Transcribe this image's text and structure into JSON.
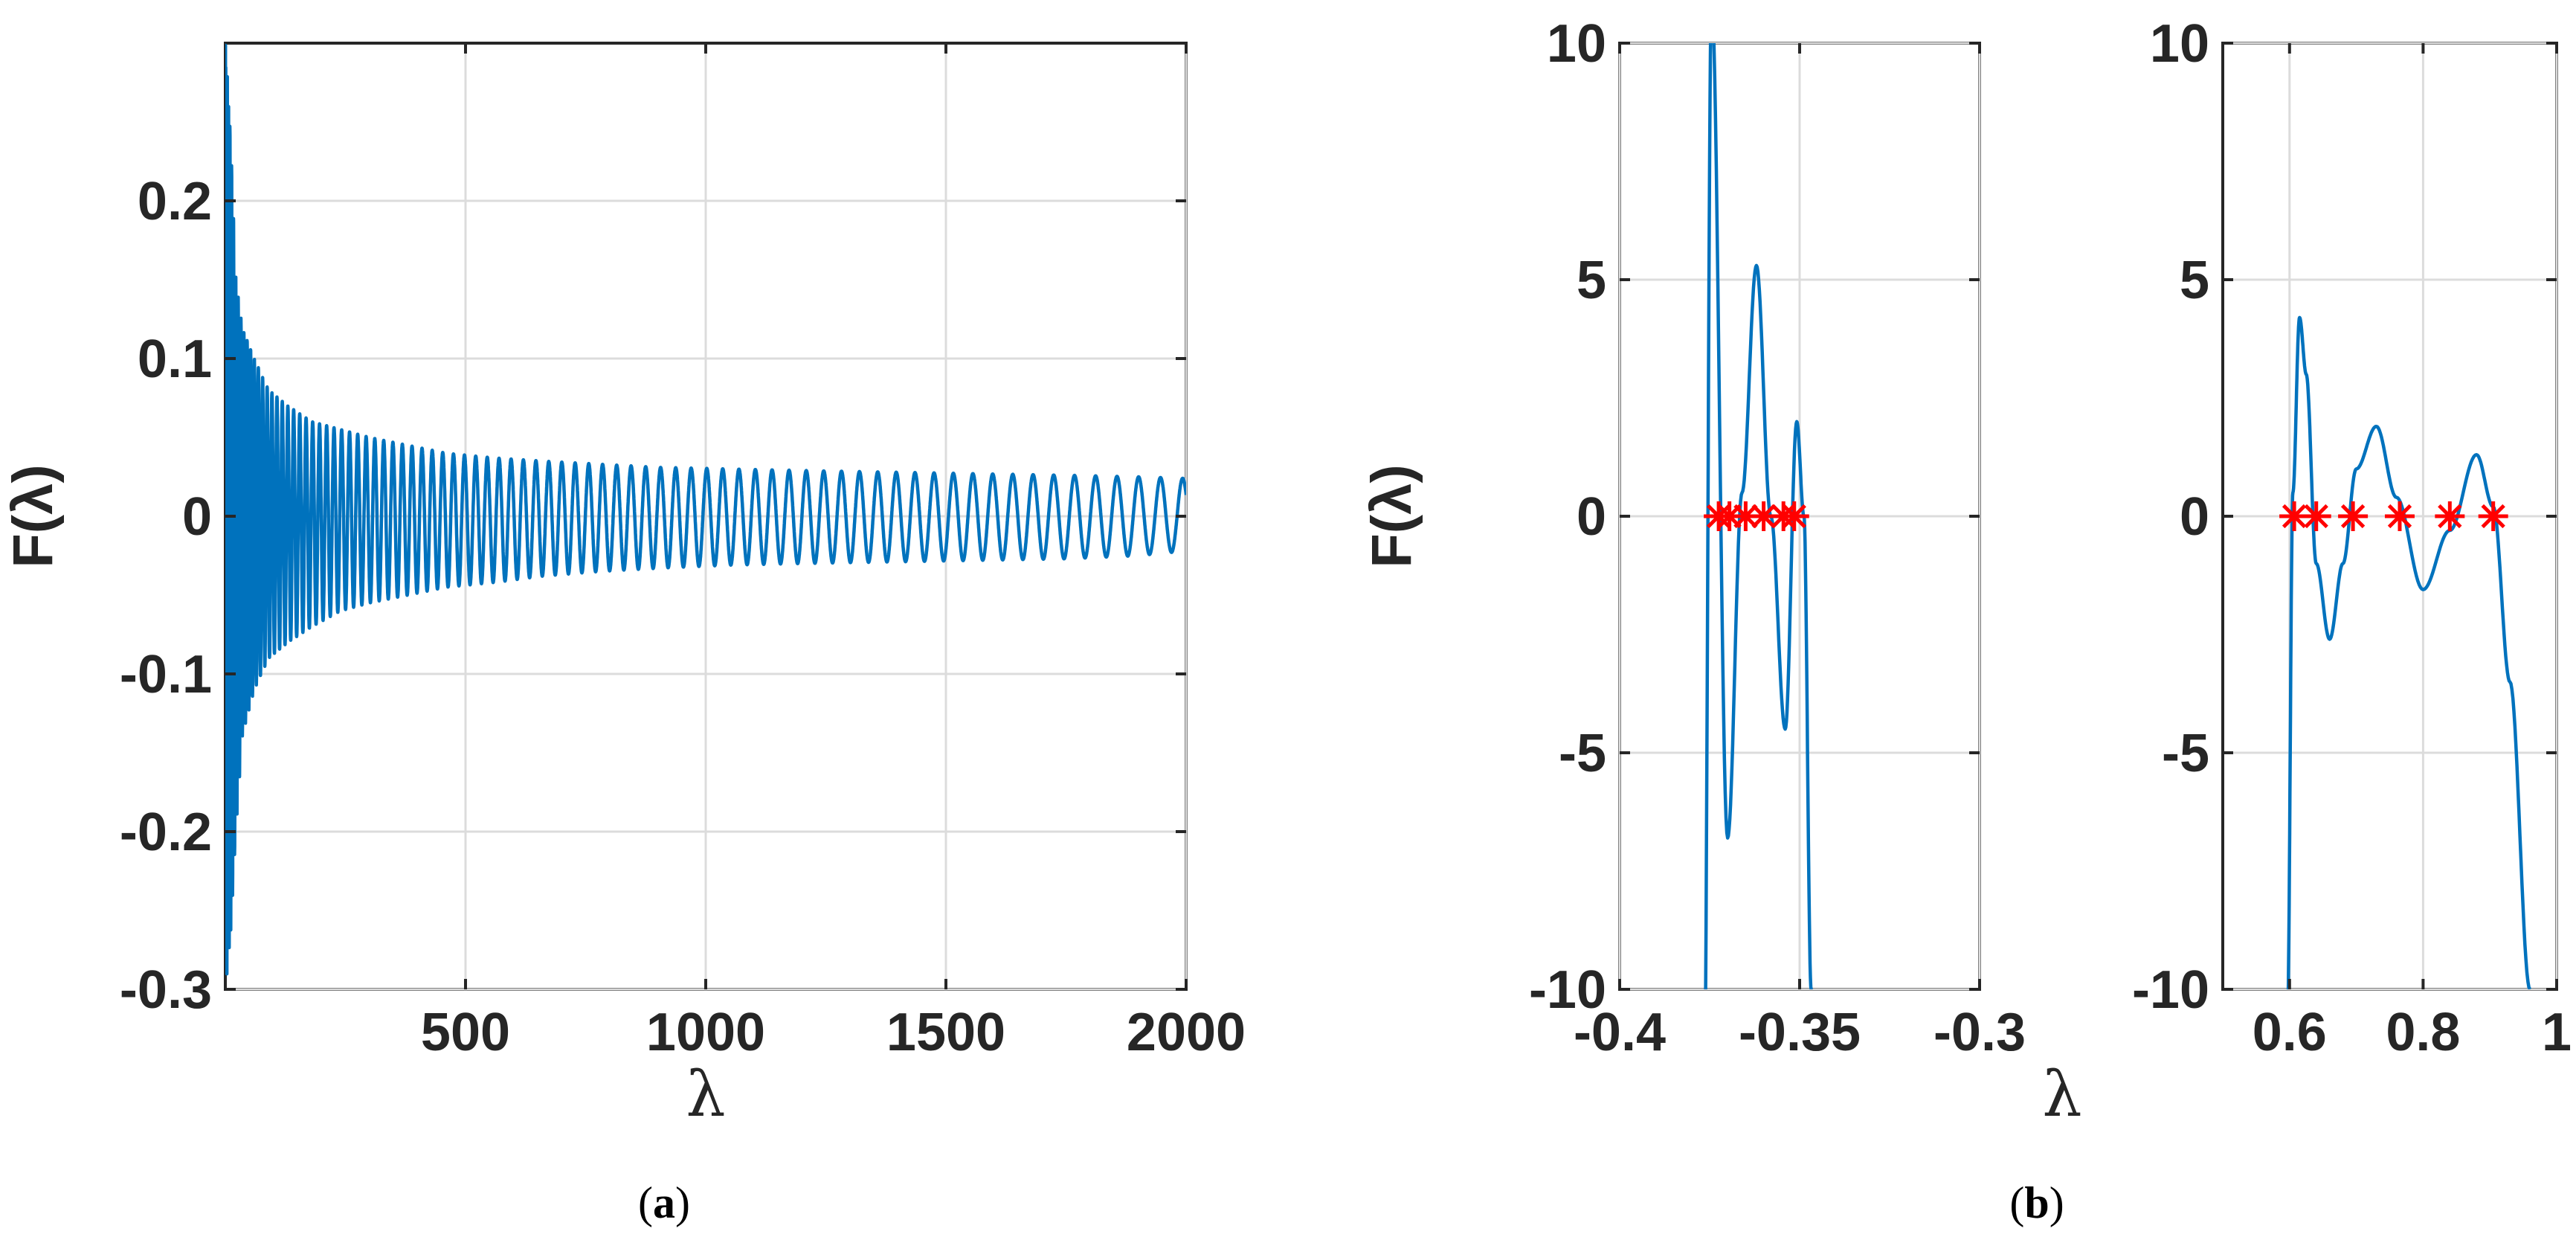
{
  "chart_data": [
    {
      "type": "line",
      "panel": "a",
      "caption": "(a)",
      "caption_letter": "a",
      "xlabel": "λ",
      "ylabel": "F(λ)",
      "xlim": [
        0,
        2000
      ],
      "ylim": [
        -0.3,
        0.3
      ],
      "xticks": [
        500,
        1000,
        1500,
        2000
      ],
      "xtick_labels": [
        "500",
        "1000",
        "1500",
        "2000"
      ],
      "yticks": [
        -0.3,
        -0.2,
        -0.1,
        0,
        0.1,
        0.2
      ],
      "ytick_labels": [
        "-0.3",
        "-0.2",
        "-0.1",
        "0",
        "0.1",
        "0.2"
      ],
      "grid": true,
      "series": [
        {
          "name": "F(λ)",
          "color": "#0072BD",
          "description": "Damped oscillation whose period grows with λ",
          "x": [
            0,
            10,
            22,
            35,
            60,
            90,
            130,
            180,
            240,
            300,
            380,
            460,
            560,
            660,
            780,
            900,
            1050,
            1200,
            1380,
            1560,
            1750,
            1900,
            2000
          ],
          "peaks_max": [
            0.3,
            0.25,
            0.15,
            0.12,
            0.1,
            0.08,
            0.07,
            0.06,
            0.055,
            0.05,
            0.045,
            0.04,
            0.037,
            0.035,
            0.033,
            0.031,
            0.03,
            0.029,
            0.028,
            0.027,
            0.026,
            0.025,
            0.024
          ],
          "peaks_min": [
            -0.3,
            -0.27,
            -0.2,
            -0.14,
            -0.11,
            -0.09,
            -0.08,
            -0.07,
            -0.06,
            -0.055,
            -0.05,
            -0.045,
            -0.042,
            -0.038,
            -0.035,
            -0.033,
            -0.031,
            -0.03,
            -0.029,
            -0.028,
            -0.027,
            -0.025,
            -0.022
          ]
        }
      ]
    },
    {
      "type": "line",
      "panel": "b-left",
      "xlabel": "",
      "ylabel": "F(λ)",
      "xlim": [
        -0.4,
        -0.3
      ],
      "ylim": [
        -10,
        10
      ],
      "xticks": [
        -0.4,
        -0.35,
        -0.3
      ],
      "xtick_labels": [
        "-0.4",
        "-0.35",
        "-0.3"
      ],
      "yticks": [
        -10,
        -5,
        0,
        5,
        10
      ],
      "ytick_labels": [
        "-10",
        "-5",
        "0",
        "5",
        "10"
      ],
      "grid": true,
      "series": [
        {
          "name": "F(λ)",
          "color": "#0072BD",
          "x": [
            -0.3765,
            -0.3745,
            -0.37,
            -0.366,
            -0.362,
            -0.358,
            -0.354,
            -0.3508,
            -0.3488,
            -0.3468,
            -0.346
          ],
          "y": [
            -12,
            11,
            -6.8,
            0.5,
            5.3,
            0,
            -4.5,
            2.0,
            0,
            -10,
            -12
          ]
        }
      ],
      "markers": {
        "symbol": "*",
        "color": "#ff0000",
        "x": [
          -0.3725,
          -0.3695,
          -0.365,
          -0.36,
          -0.3545,
          -0.3515
        ],
        "y": [
          0,
          0,
          0,
          0,
          0,
          0
        ]
      }
    },
    {
      "type": "line",
      "panel": "b-right",
      "caption": "(b)",
      "caption_letter": "b",
      "xlabel": "λ",
      "ylabel": "",
      "xlim": [
        0.5,
        1.0
      ],
      "ylim": [
        -10,
        10
      ],
      "xticks": [
        0.6,
        0.8,
        1
      ],
      "xtick_labels": [
        "0.6",
        "0.8",
        "1"
      ],
      "yticks": [
        -10,
        -5,
        0,
        5,
        10
      ],
      "ytick_labels": [
        "-10",
        "-5",
        "0",
        "5",
        "10"
      ],
      "grid": true,
      "series": [
        {
          "name": "F(λ)",
          "color": "#0072BD",
          "x": [
            0.597,
            0.605,
            0.615,
            0.625,
            0.64,
            0.66,
            0.68,
            0.7,
            0.73,
            0.76,
            0.8,
            0.84,
            0.88,
            0.905,
            0.93,
            0.96
          ],
          "y": [
            -10.5,
            0.5,
            4.2,
            3.0,
            -1.0,
            -2.6,
            -1.0,
            1.0,
            1.9,
            0.4,
            -1.55,
            -0.3,
            1.3,
            0.2,
            -3.5,
            -10
          ]
        }
      ],
      "markers": {
        "symbol": "*",
        "color": "#ff0000",
        "x": [
          0.607,
          0.64,
          0.695,
          0.765,
          0.84,
          0.905
        ],
        "y": [
          0,
          0,
          0,
          0,
          0,
          0
        ]
      }
    }
  ]
}
